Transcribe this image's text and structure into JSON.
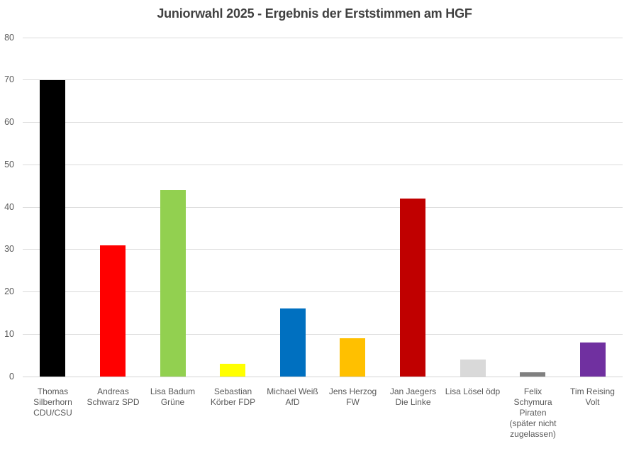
{
  "chart_data": {
    "type": "bar",
    "title": "Juniorwahl 2025 - Ergebnis der Erststimmen am HGF",
    "xlabel": "",
    "ylabel": "",
    "ylim": [
      0,
      80
    ],
    "yticks": [
      0,
      10,
      20,
      30,
      40,
      50,
      60,
      70,
      80
    ],
    "grid": true,
    "legend": "none",
    "categories": [
      "Thomas Silberhorn CDU/CSU",
      "Andreas Schwarz SPD",
      "Lisa Badum Grüne",
      "Sebastian Körber FDP",
      "Michael Weiß AfD",
      "Jens Herzog FW",
      "Jan Jaegers Die Linke",
      "Lisa Lösel ödp",
      "Felix Schymura Piraten (später nicht zugelassen)",
      "Tim Reising Volt"
    ],
    "values": [
      70,
      31,
      44,
      3,
      16,
      9,
      42,
      4,
      1,
      8
    ],
    "bars": [
      {
        "candidate": "Thomas Silberhorn",
        "party": "CDU/CSU",
        "value": 70,
        "color": "#000000",
        "label_lines": [
          "Thomas",
          "Silberhorn",
          "CDU/CSU"
        ]
      },
      {
        "candidate": "Andreas Schwarz",
        "party": "SPD",
        "value": 31,
        "color": "#FF0000",
        "label_lines": [
          "Andreas",
          "Schwarz SPD"
        ]
      },
      {
        "candidate": "Lisa Badum",
        "party": "Grüne",
        "value": 44,
        "color": "#92D050",
        "label_lines": [
          "Lisa Badum",
          "Grüne"
        ]
      },
      {
        "candidate": "Sebastian Körber",
        "party": "FDP",
        "value": 3,
        "color": "#FFFF00",
        "label_lines": [
          "Sebastian",
          "Körber FDP"
        ]
      },
      {
        "candidate": "Michael Weiß",
        "party": "AfD",
        "value": 16,
        "color": "#0070C0",
        "label_lines": [
          "Michael Weiß",
          "AfD"
        ]
      },
      {
        "candidate": "Jens Herzog",
        "party": "FW",
        "value": 9,
        "color": "#FFC000",
        "label_lines": [
          "Jens Herzog",
          "FW"
        ]
      },
      {
        "candidate": "Jan Jaegers",
        "party": "Die Linke",
        "value": 42,
        "color": "#C00000",
        "label_lines": [
          "Jan Jaegers",
          "Die Linke"
        ]
      },
      {
        "candidate": "Lisa Lösel",
        "party": "ödp",
        "value": 4,
        "color": "#D9D9D9",
        "label_lines": [
          "Lisa Lösel ödp"
        ]
      },
      {
        "candidate": "Felix Schymura",
        "party": "Piraten",
        "value": 1,
        "color": "#808080",
        "label_lines": [
          "Felix",
          "Schymura",
          "Piraten",
          "(später nicht",
          "zugelassen)"
        ]
      },
      {
        "candidate": "Tim Reising",
        "party": "Volt",
        "value": 8,
        "color": "#7030A0",
        "label_lines": [
          "Tim Reising",
          "Volt"
        ]
      }
    ],
    "colors": {
      "background": "#FFFFFF",
      "gridline": "#DBDBDB",
      "axis_line": "#D4D4D4",
      "tick_label": "#595959",
      "title": "#404040"
    }
  }
}
